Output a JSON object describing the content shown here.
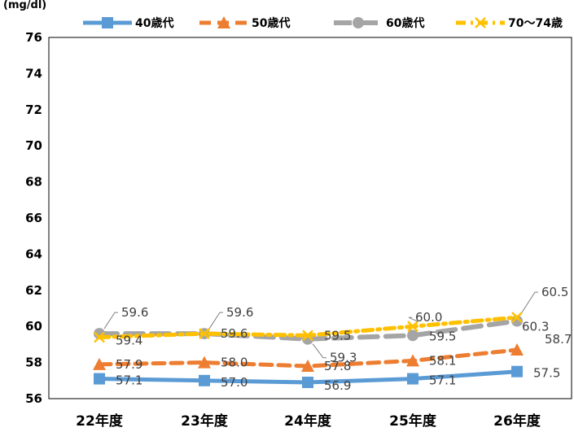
{
  "chart_data": {
    "type": "line",
    "unit_label": "(mg/dl)",
    "categories": [
      "22年度",
      "23年度",
      "24年度",
      "25年度",
      "26年度"
    ],
    "ylim": [
      56,
      76
    ],
    "yticks": [
      "56",
      "58",
      "60",
      "62",
      "64",
      "66",
      "68",
      "70",
      "72",
      "74",
      "76"
    ],
    "legend_position": "top",
    "grid": false,
    "series": [
      {
        "name": "40歳代",
        "values": [
          57.1,
          57.0,
          56.9,
          57.1,
          57.5
        ],
        "labels": [
          "57.1",
          "57.0",
          "56.9",
          "57.1",
          "57.5"
        ],
        "color": "#5B9BD5",
        "marker": "square",
        "dash": "solid"
      },
      {
        "name": "50歳代",
        "values": [
          57.9,
          58.0,
          57.8,
          58.1,
          58.7
        ],
        "labels": [
          "57.9",
          "58.0",
          "57.8",
          "58.1",
          "58.7"
        ],
        "color": "#ED7D31",
        "marker": "triangle",
        "dash": "dashed"
      },
      {
        "name": "60歳代",
        "values": [
          59.6,
          59.6,
          59.3,
          59.5,
          60.3
        ],
        "labels": [
          "59.6",
          "59.6",
          "59.3",
          "59.5",
          "60.3"
        ],
        "color": "#A5A5A5",
        "marker": "circle",
        "dash": "longdash"
      },
      {
        "name": "70〜74歳",
        "values": [
          59.4,
          59.6,
          59.5,
          60.0,
          60.5
        ],
        "labels": [
          "59.4",
          "59.6",
          "59.5",
          "60.0",
          "60.5"
        ],
        "color": "#FFC000",
        "marker": "x",
        "dash": "dashdot"
      }
    ]
  }
}
